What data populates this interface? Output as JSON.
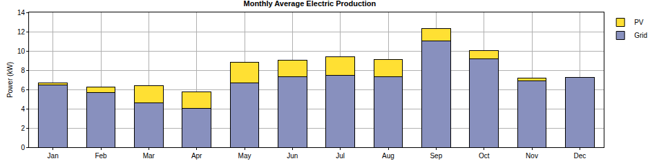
{
  "chart_data": {
    "type": "bar",
    "title": "Monthly Average Electric Production",
    "y_label": "Power (kW)",
    "categories": [
      "Jan",
      "Feb",
      "Mar",
      "Apr",
      "May",
      "Jun",
      "Jul",
      "Aug",
      "Sep",
      "Oct",
      "Nov",
      "Dec"
    ],
    "series": [
      {
        "name": "Grid",
        "color": "#8890be",
        "values": [
          6.5,
          5.7,
          4.6,
          4.05,
          6.7,
          7.3,
          7.5,
          7.35,
          11.05,
          9.2,
          6.9,
          7.25
        ]
      },
      {
        "name": "PV",
        "color": "#ffe033",
        "values": [
          0.2,
          0.55,
          1.8,
          1.7,
          2.15,
          1.75,
          1.9,
          1.75,
          1.25,
          0.85,
          0.3,
          0
        ]
      }
    ],
    "stacked": true,
    "ylim": [
      0,
      14
    ],
    "yticks": [
      0,
      2,
      4,
      6,
      8,
      10,
      12,
      14
    ],
    "grid": true,
    "legend": "top right"
  }
}
